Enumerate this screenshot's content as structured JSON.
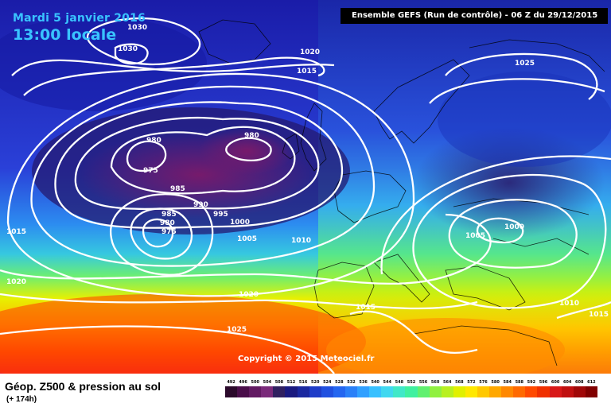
{
  "header": {
    "date": "Mardi 5 janvier 2016",
    "time": "13:00 locale",
    "run": "Ensemble GEFS   (Run de contrôle)   -  06 Z du 29/12/2015"
  },
  "copyright": "Copyright © 2015 Meteociel.fr",
  "footer": {
    "variable": "Géop. Z500 & pression au sol",
    "forecast_hour": "(+ 174h)"
  },
  "isobar_labels": [
    {
      "text": "1030",
      "id": "nw1"
    },
    {
      "text": "1030",
      "id": "nw2"
    },
    {
      "text": "1020",
      "id": "n1"
    },
    {
      "text": "1015",
      "id": "n2"
    },
    {
      "text": "1025",
      "id": "ne"
    },
    {
      "text": "980",
      "id": "l1"
    },
    {
      "text": "980",
      "id": "l2"
    },
    {
      "text": "975",
      "id": "l3"
    },
    {
      "text": "985",
      "id": "l4"
    },
    {
      "text": "990",
      "id": "l5"
    },
    {
      "text": "995",
      "id": "l6"
    },
    {
      "text": "985",
      "id": "l7"
    },
    {
      "text": "980",
      "id": "l8"
    },
    {
      "text": "975",
      "id": "l9"
    },
    {
      "text": "1000",
      "id": "l10"
    },
    {
      "text": "1005",
      "id": "l11"
    },
    {
      "text": "1010",
      "id": "l12"
    },
    {
      "text": "1015",
      "id": "w1"
    },
    {
      "text": "1020",
      "id": "w2"
    },
    {
      "text": "1020",
      "id": "s1"
    },
    {
      "text": "1025",
      "id": "s2"
    },
    {
      "text": "1015",
      "id": "s3"
    },
    {
      "text": "1005",
      "id": "e1"
    },
    {
      "text": "1000",
      "id": "e2"
    },
    {
      "text": "1010",
      "id": "e3"
    },
    {
      "text": "1015",
      "id": "e4"
    }
  ],
  "scale": {
    "labels": [
      "492",
      "496",
      "500",
      "504",
      "508",
      "512",
      "516",
      "520",
      "524",
      "528",
      "532",
      "536",
      "540",
      "544",
      "548",
      "552",
      "556",
      "560",
      "564",
      "568",
      "572",
      "576",
      "580",
      "584",
      "588",
      "592",
      "596",
      "600",
      "604",
      "608",
      "612"
    ],
    "colors": [
      "#2b0a2b",
      "#4a0e4a",
      "#621a62",
      "#7a2a7a",
      "#302060",
      "#1a1a80",
      "#1a28a0",
      "#1e3cc8",
      "#2050e0",
      "#2466f0",
      "#2a80f8",
      "#30a0ff",
      "#38c0ff",
      "#40d8f0",
      "#40e8c8",
      "#40f0a0",
      "#60f070",
      "#90f040",
      "#b8f020",
      "#e0f000",
      "#ffe800",
      "#ffc800",
      "#ffa800",
      "#ff8800",
      "#ff6a00",
      "#ff4a00",
      "#f03000",
      "#d81818",
      "#c01010",
      "#a00808",
      "#800000"
    ]
  }
}
